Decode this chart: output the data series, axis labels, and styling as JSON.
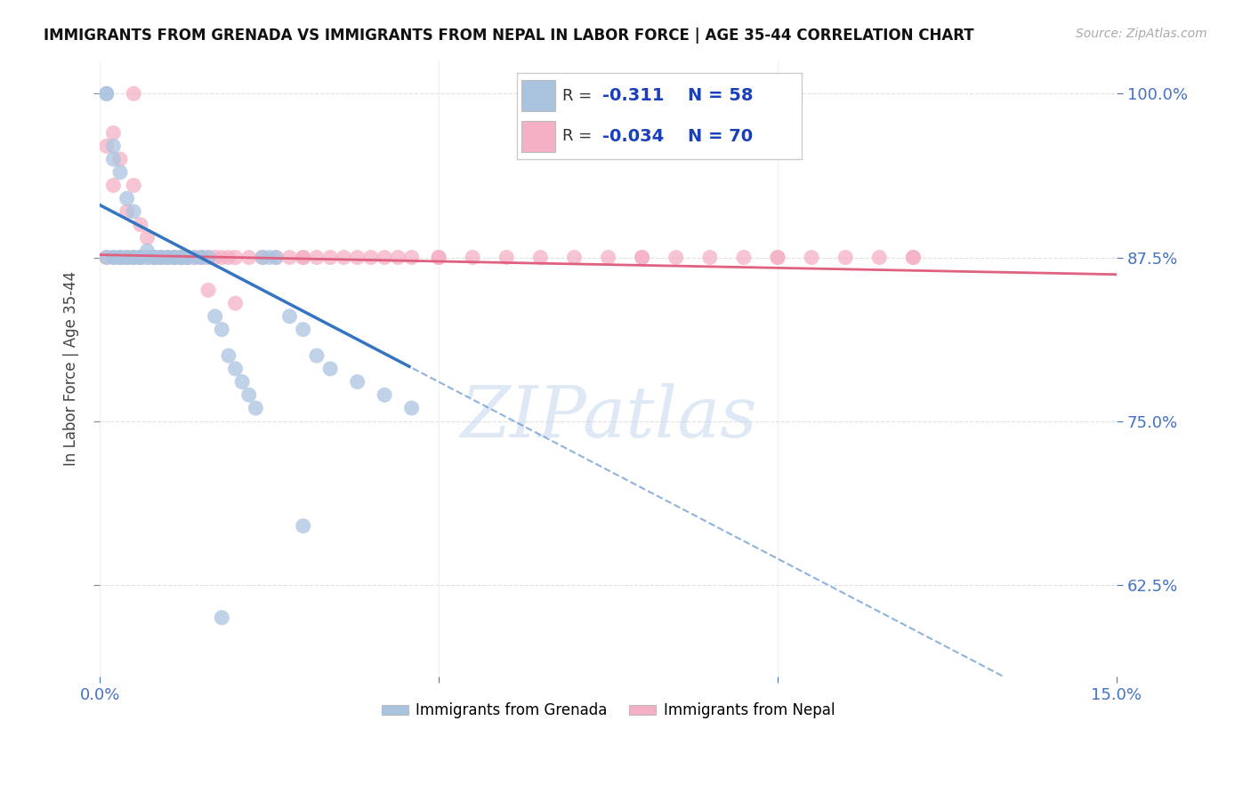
{
  "title": "IMMIGRANTS FROM GRENADA VS IMMIGRANTS FROM NEPAL IN LABOR FORCE | AGE 35-44 CORRELATION CHART",
  "source": "Source: ZipAtlas.com",
  "ylabel": "In Labor Force | Age 35-44",
  "xlim": [
    0.0,
    0.15
  ],
  "ylim": [
    0.555,
    1.025
  ],
  "yticks": [
    0.625,
    0.75,
    0.875,
    1.0
  ],
  "ytick_labels": [
    "62.5%",
    "75.0%",
    "87.5%",
    "100.0%"
  ],
  "xticks": [
    0.0,
    0.05,
    0.1,
    0.15
  ],
  "xtick_labels": [
    "0.0%",
    "",
    "",
    "15.0%"
  ],
  "grenada_R": -0.311,
  "grenada_N": 58,
  "nepal_R": -0.034,
  "nepal_N": 70,
  "grenada_color": "#aac4e0",
  "nepal_color": "#f5b0c5",
  "grenada_line_color": "#3575c0",
  "nepal_line_color": "#e06080",
  "grenada_scatter_x": [
    0.001,
    0.001,
    0.002,
    0.002,
    0.002,
    0.003,
    0.003,
    0.004,
    0.004,
    0.005,
    0.005,
    0.006,
    0.006,
    0.007,
    0.007,
    0.008,
    0.008,
    0.009,
    0.009,
    0.01,
    0.01,
    0.011,
    0.011,
    0.012,
    0.012,
    0.013,
    0.013,
    0.014,
    0.015,
    0.015,
    0.016,
    0.017,
    0.018,
    0.019,
    0.02,
    0.021,
    0.022,
    0.023,
    0.024,
    0.025,
    0.026,
    0.028,
    0.03,
    0.032,
    0.034,
    0.038,
    0.042,
    0.046,
    0.001,
    0.002,
    0.003,
    0.004,
    0.005,
    0.006,
    0.008,
    0.012,
    0.018,
    0.03
  ],
  "grenada_scatter_y": [
    1.0,
    1.0,
    0.96,
    0.95,
    0.875,
    0.94,
    0.875,
    0.92,
    0.875,
    0.91,
    0.875,
    0.875,
    0.875,
    0.875,
    0.88,
    0.875,
    0.875,
    0.875,
    0.875,
    0.875,
    0.875,
    0.875,
    0.875,
    0.875,
    0.875,
    0.875,
    0.875,
    0.875,
    0.875,
    0.875,
    0.875,
    0.83,
    0.82,
    0.8,
    0.79,
    0.78,
    0.77,
    0.76,
    0.875,
    0.875,
    0.875,
    0.83,
    0.82,
    0.8,
    0.79,
    0.78,
    0.77,
    0.76,
    0.875,
    0.875,
    0.875,
    0.875,
    0.875,
    0.875,
    0.875,
    0.875,
    0.6,
    0.67
  ],
  "nepal_scatter_x": [
    0.001,
    0.001,
    0.002,
    0.002,
    0.003,
    0.003,
    0.004,
    0.004,
    0.005,
    0.005,
    0.006,
    0.006,
    0.007,
    0.007,
    0.008,
    0.008,
    0.009,
    0.009,
    0.01,
    0.01,
    0.011,
    0.011,
    0.012,
    0.012,
    0.013,
    0.014,
    0.015,
    0.016,
    0.017,
    0.018,
    0.019,
    0.02,
    0.022,
    0.024,
    0.026,
    0.028,
    0.03,
    0.032,
    0.034,
    0.036,
    0.038,
    0.04,
    0.042,
    0.044,
    0.046,
    0.05,
    0.055,
    0.06,
    0.065,
    0.07,
    0.075,
    0.08,
    0.085,
    0.09,
    0.095,
    0.1,
    0.105,
    0.11,
    0.115,
    0.12,
    0.005,
    0.008,
    0.012,
    0.016,
    0.02,
    0.03,
    0.05,
    0.08,
    0.1,
    0.12
  ],
  "nepal_scatter_y": [
    0.96,
    0.875,
    0.97,
    0.93,
    0.875,
    0.95,
    0.91,
    0.875,
    0.93,
    0.875,
    0.875,
    0.9,
    0.875,
    0.89,
    0.875,
    0.875,
    0.875,
    0.875,
    0.875,
    0.875,
    0.875,
    0.875,
    0.875,
    0.875,
    0.875,
    0.875,
    0.875,
    0.875,
    0.875,
    0.875,
    0.875,
    0.875,
    0.875,
    0.875,
    0.875,
    0.875,
    0.875,
    0.875,
    0.875,
    0.875,
    0.875,
    0.875,
    0.875,
    0.875,
    0.875,
    0.875,
    0.875,
    0.875,
    0.875,
    0.875,
    0.875,
    0.875,
    0.875,
    0.875,
    0.875,
    0.875,
    0.875,
    0.875,
    0.875,
    0.875,
    1.0,
    0.875,
    0.875,
    0.85,
    0.84,
    0.875,
    0.875,
    0.875,
    0.875,
    0.875
  ],
  "watermark": "ZIPatlas",
  "background_color": "#ffffff",
  "grid_color": "#e0e0e0",
  "tick_color": "#4472c4"
}
